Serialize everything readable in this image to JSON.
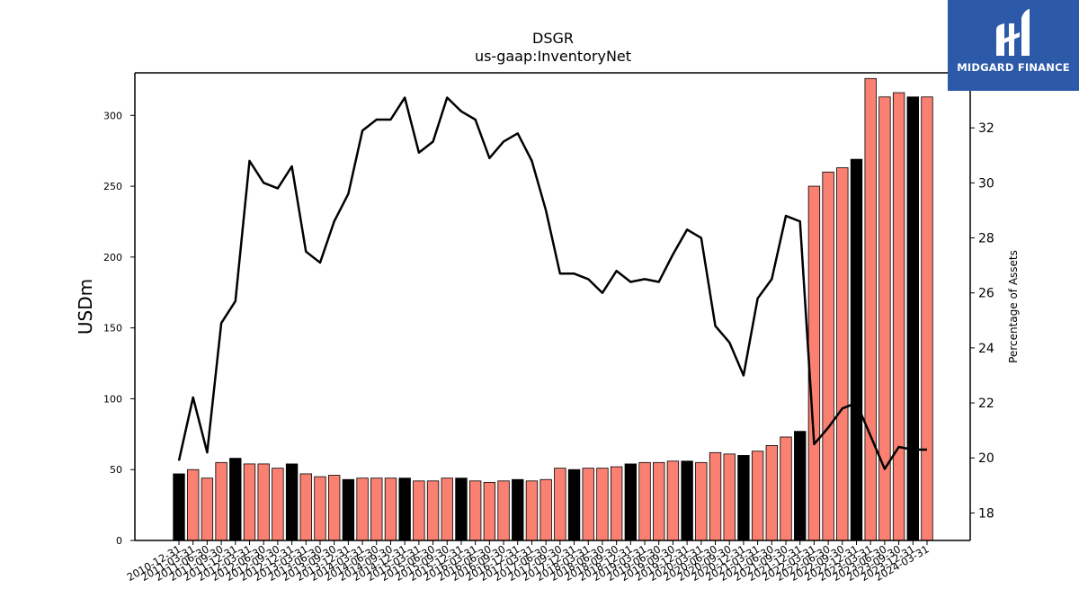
{
  "chart_data": {
    "type": "bar+line",
    "title": "DSGR",
    "subtitle": "us-gaap:InventoryNet",
    "ylabel": "USDm",
    "y2label": "Percentage of Assets",
    "ylim": [
      0,
      330
    ],
    "y2lim": [
      17,
      34
    ],
    "yticks": [
      0,
      50,
      100,
      150,
      200,
      250,
      300
    ],
    "y2ticks": [
      18,
      20,
      22,
      24,
      26,
      28,
      30,
      32
    ],
    "colors": {
      "bar_q4": "#000000",
      "bar_other": "#fa8072",
      "line": "#000000"
    },
    "categories": [
      "2010-12-31",
      "2011-03-31",
      "2011-06-30",
      "2011-09-30",
      "2011-12-31",
      "2012-03-31",
      "2012-06-30",
      "2012-09-30",
      "2012-12-31",
      "2013-03-31",
      "2013-06-30",
      "2013-09-30",
      "2013-12-31",
      "2014-03-31",
      "2014-06-30",
      "2014-09-30",
      "2014-12-31",
      "2015-03-31",
      "2015-06-30",
      "2015-09-30",
      "2015-12-31",
      "2016-03-31",
      "2016-06-30",
      "2016-09-30",
      "2016-12-31",
      "2017-03-31",
      "2017-06-30",
      "2017-09-30",
      "2017-12-31",
      "2018-03-31",
      "2018-06-30",
      "2018-09-30",
      "2018-12-31",
      "2019-03-31",
      "2019-06-30",
      "2019-09-30",
      "2019-12-31",
      "2020-03-31",
      "2020-06-30",
      "2020-09-30",
      "2020-12-31",
      "2021-03-31",
      "2021-06-30",
      "2021-09-30",
      "2021-12-31",
      "2022-03-31",
      "2022-06-30",
      "2022-09-30",
      "2022-12-31",
      "2023-03-31",
      "2023-06-30",
      "2023-09-30",
      "2023-12-31",
      "2024-03-31"
    ],
    "series": [
      {
        "type": "bar",
        "values": [
          47,
          50,
          44,
          55,
          58,
          54,
          54,
          51,
          54,
          47,
          45,
          46,
          43,
          44,
          44,
          44,
          44,
          42,
          42,
          44,
          44,
          42,
          41,
          42,
          43,
          42,
          43,
          51,
          50,
          51,
          51,
          52,
          54,
          55,
          55,
          56,
          56,
          55,
          62,
          61,
          60,
          63,
          67,
          73,
          77,
          250,
          260,
          263,
          269,
          326,
          313,
          316,
          313,
          313
        ]
      },
      {
        "type": "line",
        "axis": "right",
        "values": [
          19.9,
          22.2,
          20.2,
          24.9,
          25.7,
          30.8,
          30.0,
          29.8,
          30.6,
          27.5,
          27.1,
          28.6,
          29.6,
          31.9,
          32.3,
          32.3,
          33.1,
          31.1,
          31.5,
          33.1,
          32.6,
          32.3,
          30.9,
          31.5,
          31.8,
          30.8,
          29.0,
          26.7,
          26.7,
          26.5,
          26.0,
          26.8,
          26.4,
          26.5,
          26.4,
          27.4,
          28.3,
          28.0,
          24.8,
          24.2,
          23.0,
          25.8,
          26.5,
          28.8,
          28.6,
          20.5,
          21.1,
          21.8,
          22.0,
          20.8,
          19.6,
          20.4,
          20.3,
          20.3
        ]
      }
    ]
  },
  "logo": {
    "text": "MIDGARD FINANCE"
  }
}
